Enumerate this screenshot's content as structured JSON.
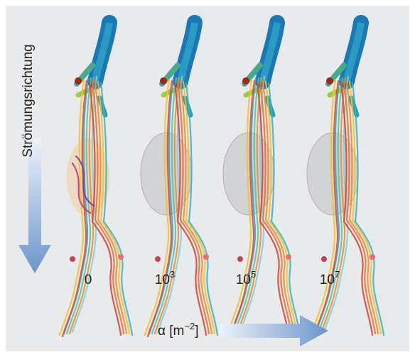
{
  "figure": {
    "flow_direction": "Strömungsrichtung",
    "panels": [
      {
        "base": "0"
      },
      {
        "base": "10",
        "exponent": "3"
      },
      {
        "base": "10",
        "exponent": "5"
      },
      {
        "base": "10",
        "exponent": "7"
      }
    ],
    "axis_label": {
      "prefix": "α [m",
      "exponent": "−2",
      "suffix": "]"
    }
  }
}
